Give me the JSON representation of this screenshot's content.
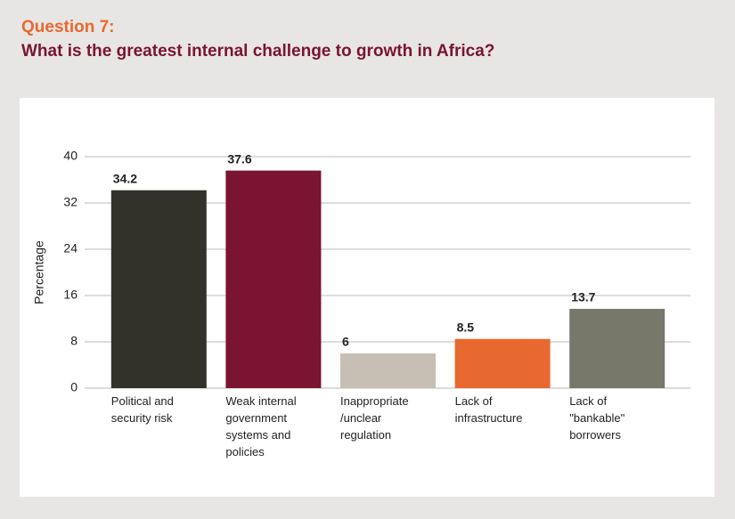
{
  "chart_data": {
    "type": "bar",
    "kicker": "Question 7:",
    "title": "What is the greatest internal challenge to growth in Africa?",
    "y_label": "Percentage",
    "categories": [
      "Political and security risk",
      "Weak internal government systems and policies",
      "Inappropriate /unclear regulation",
      "Lack of infrastructure",
      "Lack of \"bankable\" borrowers"
    ],
    "values": [
      34.2,
      37.6,
      6,
      8.5,
      13.7
    ],
    "colors": [
      "#33322a",
      "#7a1430",
      "#c8bfb4",
      "#e8692f",
      "#77776a"
    ],
    "ylim": [
      0,
      40
    ],
    "yticks": [
      0,
      8,
      16,
      24,
      32,
      40
    ],
    "grid": true
  }
}
